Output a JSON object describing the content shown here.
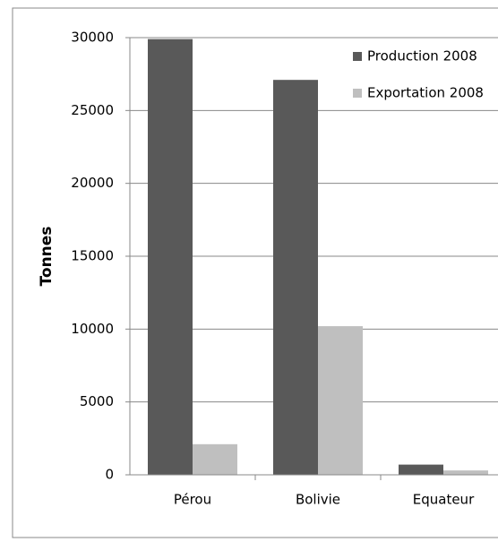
{
  "chart_data": {
    "type": "bar",
    "y_label": "Tonnes",
    "categories": [
      "Pérou",
      "Bolivie",
      "Equateur"
    ],
    "series": [
      {
        "name": "Production 2008",
        "color": "#595959",
        "values": [
          29900,
          27100,
          700
        ]
      },
      {
        "name": "Exportation 2008",
        "color": "#bfbfbf",
        "values": [
          2100,
          10200,
          300
        ]
      }
    ],
    "ylim": [
      0,
      30000
    ],
    "yticks": [
      0,
      5000,
      10000,
      15000,
      20000,
      25000,
      30000
    ],
    "grid": true,
    "legend": "top-right"
  }
}
